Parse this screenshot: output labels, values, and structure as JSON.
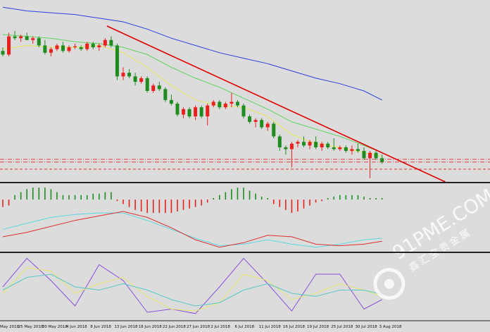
{
  "chart_data": [
    {
      "type": "candlestick",
      "categories": [
        "May 2018",
        null,
        null,
        "25 May 2018",
        null,
        null,
        null,
        "30 May 2018",
        null,
        null,
        null,
        "4 Jun 2018",
        null,
        null,
        null,
        "8 Jun 2018",
        null,
        null,
        null,
        "13 Jun 2018",
        null,
        null,
        null,
        "18 Jun 2018",
        null,
        null,
        null,
        "22 Jun 2018",
        null,
        null,
        null,
        "27 Jun 2018",
        null,
        null,
        null,
        "2 Jul 2018",
        null,
        null,
        null,
        "6 Jul 2018",
        null,
        null,
        null,
        "11 Jul 2018",
        null,
        null,
        null,
        "16 Jul 2018",
        null,
        null,
        null,
        "19 Jul 2018",
        null,
        null,
        null,
        "25 Jul 2018",
        null,
        null,
        null,
        "30 Jul 2018",
        null,
        null,
        null,
        "3 Aug 2018"
      ],
      "ohlc": [
        [
          72,
          74,
          69,
          70
        ],
        [
          70,
          82,
          69,
          80
        ],
        [
          80,
          83,
          78,
          79
        ],
        [
          79,
          81,
          77,
          80
        ],
        [
          80,
          82,
          78,
          78
        ],
        [
          78,
          80,
          76,
          79
        ],
        [
          79,
          80,
          74,
          75
        ],
        [
          75,
          78,
          70,
          71
        ],
        [
          71,
          74,
          69,
          73
        ],
        [
          73,
          76,
          72,
          75
        ],
        [
          75,
          77,
          71,
          72
        ],
        [
          72,
          75,
          71,
          74
        ],
        [
          74,
          76,
          73,
          74.5
        ],
        [
          74,
          75,
          72,
          73
        ],
        [
          73,
          77,
          72,
          76
        ],
        [
          76,
          77,
          73,
          74
        ],
        [
          74,
          76,
          72,
          75
        ],
        [
          75,
          79,
          74,
          78
        ],
        [
          78,
          80,
          74,
          75
        ],
        [
          75,
          76,
          56,
          58
        ],
        [
          58,
          63,
          56,
          60
        ],
        [
          60,
          62,
          57,
          58
        ],
        [
          58,
          60,
          53,
          55
        ],
        [
          55,
          58,
          54,
          57
        ],
        [
          57,
          58,
          49,
          50
        ],
        [
          50,
          54,
          49,
          53
        ],
        [
          53,
          55,
          50,
          51
        ],
        [
          51,
          52,
          44,
          45
        ],
        [
          45,
          48,
          42,
          43
        ],
        [
          43,
          44,
          36,
          37
        ],
        [
          37,
          41,
          35,
          40
        ],
        [
          40,
          41,
          35,
          36
        ],
        [
          36,
          42,
          34,
          41
        ],
        [
          41,
          42,
          35,
          36
        ],
        [
          36,
          43,
          31,
          42
        ],
        [
          42,
          45,
          41,
          44
        ],
        [
          44,
          45,
          40,
          41
        ],
        [
          41,
          44,
          40,
          43
        ],
        [
          43,
          49,
          41,
          44
        ],
        [
          44,
          45,
          41,
          42
        ],
        [
          42,
          43,
          35,
          36
        ],
        [
          36,
          37,
          32,
          33
        ],
        [
          33,
          35,
          30,
          34
        ],
        [
          34,
          35,
          29,
          30
        ],
        [
          30,
          33,
          28,
          32
        ],
        [
          32,
          33,
          24,
          25
        ],
        [
          25,
          26,
          17,
          19
        ],
        [
          19,
          20,
          15,
          18
        ],
        [
          18,
          22,
          8,
          21
        ],
        [
          21,
          23,
          19,
          22
        ],
        [
          22,
          25,
          19,
          20
        ],
        [
          20,
          23,
          18,
          22
        ],
        [
          22,
          25,
          18,
          19
        ],
        [
          19,
          22,
          17,
          21
        ],
        [
          21,
          22,
          18,
          19
        ],
        [
          19,
          24,
          17,
          18
        ],
        [
          18,
          20,
          17,
          19
        ],
        [
          19,
          20,
          16,
          17
        ],
        [
          17,
          20,
          15,
          18
        ],
        [
          18,
          21,
          16,
          17
        ],
        [
          17,
          19,
          12,
          13
        ],
        [
          13,
          17,
          2,
          16
        ],
        [
          16,
          17,
          12,
          13
        ],
        [
          13,
          15,
          10,
          11
        ]
      ],
      "up_color": "#e8201e",
      "down_color": "#1e8c1e",
      "ylim": [
        0,
        100
      ],
      "series": [
        {
          "color": "#2b3fe0",
          "x": [
            0,
            4,
            8,
            12,
            16,
            20,
            24,
            28,
            32,
            36,
            40,
            44,
            48,
            52,
            56,
            60,
            63
          ],
          "values": [
            96,
            94,
            93,
            92,
            90,
            88,
            84,
            79,
            75,
            71,
            68,
            65,
            61,
            57,
            54,
            50,
            45
          ]
        },
        {
          "color": "#5fd35f",
          "x": [
            0,
            4,
            8,
            12,
            16,
            20,
            24,
            28,
            32,
            36,
            40,
            44,
            48,
            52,
            56,
            60,
            63
          ],
          "values": [
            81,
            80,
            79,
            77,
            76,
            74,
            70,
            63,
            57,
            52,
            46,
            40,
            33,
            29,
            25,
            20,
            16
          ]
        },
        {
          "color": "#e6e65a",
          "x": [
            0,
            4,
            8,
            12,
            16,
            20,
            24,
            28,
            32,
            36,
            40,
            44,
            48,
            52,
            56,
            60,
            63
          ],
          "values": [
            73,
            75,
            74,
            74,
            75,
            71,
            63,
            53,
            45,
            42,
            41,
            36,
            26,
            21,
            19,
            16,
            14
          ]
        },
        {
          "color": "#e00000",
          "x": [
            17.3,
            73.5
          ],
          "values": [
            85.7,
            0
          ]
        }
      ],
      "levels": [
        {
          "value": 12.4,
          "color": "#e04040",
          "dash": "6 2 1 2"
        },
        {
          "value": 10.9,
          "color": "#e04040",
          "dash": "6 2 1 2"
        },
        {
          "value": 7,
          "color": "#e04040",
          "dash": "4 3"
        }
      ]
    },
    {
      "type": "macd",
      "histogram": {
        "up_color": "#1e8c1e",
        "down_color": "#e8201e",
        "values": [
          -0.5,
          -0.4,
          0.3,
          0.5,
          0.7,
          0.8,
          0.8,
          0.8,
          0.7,
          0.5,
          0.3,
          0.3,
          0.3,
          0.3,
          0.3,
          0.4,
          0.4,
          0.5,
          0.5,
          -0.1,
          -0.3,
          -0.5,
          -0.7,
          -0.8,
          -0.9,
          -0.9,
          -0.9,
          -0.9,
          -0.9,
          -0.8,
          -0.7,
          -0.6,
          -0.5,
          -0.4,
          -0.2,
          0.1,
          0.3,
          0.5,
          0.7,
          0.8,
          0.8,
          0.6,
          0.4,
          0.2,
          0.1,
          -0.3,
          -0.5,
          -0.7,
          -0.9,
          -0.8,
          -0.6,
          -0.4,
          -0.2,
          -0.1,
          0.1,
          0.2,
          0.3,
          0.3,
          0.3,
          0.3,
          0.2,
          0.1,
          0.1,
          0.1
        ]
      },
      "ylim": [
        -3.5,
        1
      ],
      "series": [
        {
          "color": "#5ad8e0",
          "x": [
            0,
            4,
            8,
            12,
            16,
            20,
            24,
            28,
            32,
            36,
            40,
            44,
            48,
            52,
            56,
            60,
            63
          ],
          "values": [
            -2.0,
            -1.6,
            -1.2,
            -1.0,
            -0.9,
            -0.9,
            -1.4,
            -2.0,
            -2.6,
            -3.1,
            -3.0,
            -2.7,
            -3.0,
            -3.2,
            -3.0,
            -2.7,
            -2.6
          ]
        },
        {
          "color": "#e03030",
          "x": [
            0,
            4,
            8,
            12,
            16,
            20,
            24,
            28,
            32,
            36,
            40,
            44,
            48,
            52,
            56,
            60,
            63
          ],
          "values": [
            -2.5,
            -2.2,
            -1.8,
            -1.4,
            -1.1,
            -0.8,
            -1.2,
            -1.9,
            -2.7,
            -3.2,
            -2.9,
            -2.4,
            -2.5,
            -3.0,
            -3.1,
            -3.0,
            -2.8
          ]
        }
      ]
    },
    {
      "type": "stochastic",
      "ylim": [
        0,
        100
      ],
      "series": [
        {
          "color": "#8a4fd8",
          "x": [
            0,
            4,
            8,
            12,
            16,
            20,
            24,
            28,
            32,
            36,
            40,
            44,
            48,
            52,
            56,
            60,
            63
          ],
          "values": [
            50,
            95,
            60,
            20,
            85,
            60,
            10,
            15,
            8,
            50,
            95,
            55,
            12,
            70,
            70,
            15,
            30
          ]
        },
        {
          "color": "#e6e66e",
          "x": [
            0,
            4,
            8,
            12,
            16,
            20,
            24,
            28,
            32,
            36,
            40,
            44,
            48,
            52,
            56,
            60,
            63
          ],
          "values": [
            40,
            80,
            75,
            40,
            55,
            65,
            35,
            15,
            12,
            25,
            70,
            60,
            30,
            40,
            55,
            45,
            35
          ]
        },
        {
          "color": "#5ac8c8",
          "x": [
            0,
            4,
            8,
            12,
            16,
            20,
            24,
            28,
            32,
            36,
            40,
            44,
            48,
            52,
            56,
            60,
            63
          ],
          "values": [
            45,
            65,
            70,
            50,
            45,
            55,
            45,
            30,
            20,
            25,
            45,
            55,
            40,
            35,
            45,
            45,
            38
          ]
        }
      ]
    }
  ],
  "watermark": {
    "brand": "91PME.COM",
    "subtitle": "鑫汇宝贵金属"
  }
}
